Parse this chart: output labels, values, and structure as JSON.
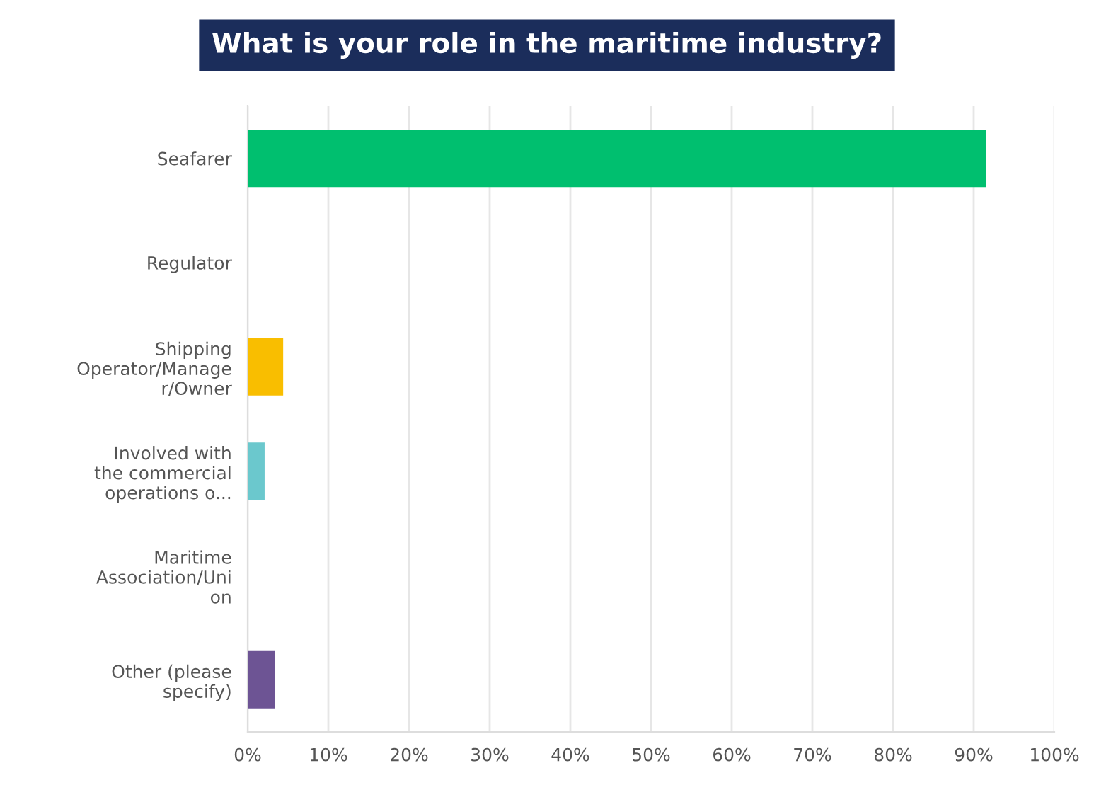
{
  "chart_data": {
    "type": "bar",
    "orientation": "horizontal",
    "title": "What is your role in the maritime industry?",
    "categories": [
      "Seafarer",
      "Regulator",
      "Shipping\nOperator/Manage\nr/Owner",
      "Involved with\nthe commercial\noperations o...",
      "Maritime\nAssociation/Uni\non",
      "Other (please\nspecify)"
    ],
    "values": [
      91.5,
      0,
      4.4,
      2.1,
      0,
      3.4
    ],
    "colors": [
      "#00bf6f",
      "#00bf6f",
      "#f9be00",
      "#6bc8cd",
      "#6bc8cd",
      "#6d5494"
    ],
    "xlim": [
      0,
      100
    ],
    "xticks": [
      {
        "value": 0,
        "label": "0%"
      },
      {
        "value": 10,
        "label": "10%"
      },
      {
        "value": 20,
        "label": "20%"
      },
      {
        "value": 30,
        "label": "30%"
      },
      {
        "value": 40,
        "label": "40%"
      },
      {
        "value": 50,
        "label": "50%"
      },
      {
        "value": 60,
        "label": "60%"
      },
      {
        "value": 70,
        "label": "70%"
      },
      {
        "value": 80,
        "label": "80%"
      },
      {
        "value": 90,
        "label": "90%"
      },
      {
        "value": 100,
        "label": "100%"
      }
    ],
    "grid": "x",
    "legend": false
  }
}
